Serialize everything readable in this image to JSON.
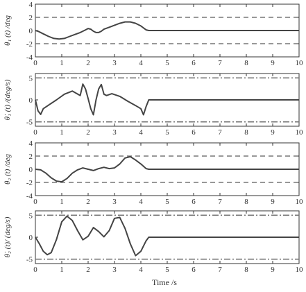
{
  "figure": {
    "xlabel": "Time /s"
  },
  "chart_data": [
    {
      "type": "line",
      "ylabel": "θ₁ (t) /deg",
      "xlim": [
        0,
        10
      ],
      "ylim": [
        -4,
        4
      ],
      "xticks": [
        0,
        1,
        2,
        3,
        4,
        5,
        6,
        7,
        8,
        9,
        10
      ],
      "yticks": [
        -4,
        -2,
        0,
        2,
        4
      ],
      "bounds": {
        "values": [
          2,
          -2
        ],
        "style": "dashed"
      },
      "series": [
        {
          "x": [
            0,
            0.1,
            0.3,
            0.5,
            0.7,
            0.9,
            1.1,
            1.3,
            1.5,
            1.7,
            1.9,
            2.0,
            2.1,
            2.2,
            2.3,
            2.4,
            2.5,
            2.6,
            2.8,
            3.0,
            3.2,
            3.4,
            3.6,
            3.8,
            4.0,
            4.2,
            4.3,
            4.5,
            10
          ],
          "y": [
            0,
            -0.1,
            -0.5,
            -0.9,
            -1.2,
            -1.3,
            -1.2,
            -0.9,
            -0.6,
            -0.3,
            0.1,
            0.3,
            0.2,
            -0.1,
            -0.3,
            -0.3,
            -0.1,
            0.2,
            0.5,
            0.8,
            1.1,
            1.3,
            1.3,
            1.1,
            0.7,
            0.1,
            0,
            0,
            0
          ]
        }
      ]
    },
    {
      "type": "line",
      "ylabel": "θ̇₁ (t) /(deg/s)",
      "xlim": [
        0,
        10
      ],
      "ylim": [
        -6,
        6
      ],
      "xticks": [
        0,
        1,
        2,
        3,
        4,
        5,
        6,
        7,
        8,
        9,
        10
      ],
      "yticks": [
        -5,
        0,
        5
      ],
      "bounds": {
        "values": [
          5,
          -5
        ],
        "style": "dashdot"
      },
      "series": [
        {
          "x": [
            0,
            0.1,
            0.2,
            0.3,
            0.5,
            0.8,
            1.1,
            1.4,
            1.7,
            1.8,
            1.9,
            2.0,
            2.1,
            2.2,
            2.3,
            2.4,
            2.5,
            2.6,
            2.7,
            2.9,
            3.2,
            3.5,
            3.8,
            4.0,
            4.1,
            4.2,
            4.3,
            10
          ],
          "y": [
            0,
            -2.5,
            -3.3,
            -2,
            -1.2,
            0,
            1.3,
            2,
            1,
            3.6,
            2.5,
            0.3,
            -2,
            -3.4,
            0,
            2.5,
            3.5,
            1.3,
            1.0,
            1.4,
            0.8,
            -0.3,
            -1.3,
            -2,
            -3.4,
            -1.5,
            0,
            0
          ]
        }
      ]
    },
    {
      "type": "line",
      "ylabel": "θ₂ (t) /deg",
      "xlim": [
        0,
        10
      ],
      "ylim": [
        -4,
        4
      ],
      "xticks": [
        0,
        1,
        2,
        3,
        4,
        5,
        6,
        7,
        8,
        9,
        10
      ],
      "yticks": [
        -4,
        -2,
        0,
        2,
        4
      ],
      "bounds": {
        "values": [
          2,
          -2
        ],
        "style": "dashed"
      },
      "series": [
        {
          "x": [
            0,
            0.2,
            0.4,
            0.6,
            0.8,
            1.0,
            1.2,
            1.4,
            1.6,
            1.8,
            2.0,
            2.2,
            2.4,
            2.6,
            2.8,
            3.0,
            3.2,
            3.4,
            3.6,
            3.8,
            4.0,
            4.2,
            4.3,
            10
          ],
          "y": [
            0,
            -0.1,
            -0.6,
            -1.3,
            -1.8,
            -1.9,
            -1.4,
            -0.6,
            -0.1,
            0.2,
            0,
            -0.2,
            0.1,
            0.3,
            0.1,
            0.2,
            0.8,
            1.7,
            1.9,
            1.4,
            0.8,
            0.1,
            0,
            0
          ]
        }
      ]
    },
    {
      "type": "line",
      "ylabel": "θ̇₂ (t)/ (deg/s)",
      "xlim": [
        0,
        10
      ],
      "ylim": [
        -6,
        6
      ],
      "xticks": [
        0,
        1,
        2,
        3,
        4,
        5,
        6,
        7,
        8,
        9,
        10
      ],
      "yticks": [
        -5,
        0,
        5
      ],
      "bounds": {
        "values": [
          5,
          -5
        ],
        "style": "dashdot"
      },
      "series": [
        {
          "x": [
            0,
            0.15,
            0.3,
            0.45,
            0.6,
            0.8,
            1.0,
            1.2,
            1.4,
            1.6,
            1.8,
            2.0,
            2.2,
            2.4,
            2.6,
            2.8,
            3.0,
            3.2,
            3.4,
            3.6,
            3.8,
            4.0,
            4.2,
            4.3,
            10
          ],
          "y": [
            0,
            -1.5,
            -3.2,
            -4,
            -3.5,
            -0.5,
            3.5,
            4.8,
            3.8,
            1.5,
            -0.6,
            0.2,
            2.2,
            1.3,
            0.1,
            1.5,
            4.3,
            4.5,
            2,
            -1.5,
            -4.2,
            -3.2,
            -0.8,
            0,
            0
          ]
        }
      ]
    }
  ]
}
